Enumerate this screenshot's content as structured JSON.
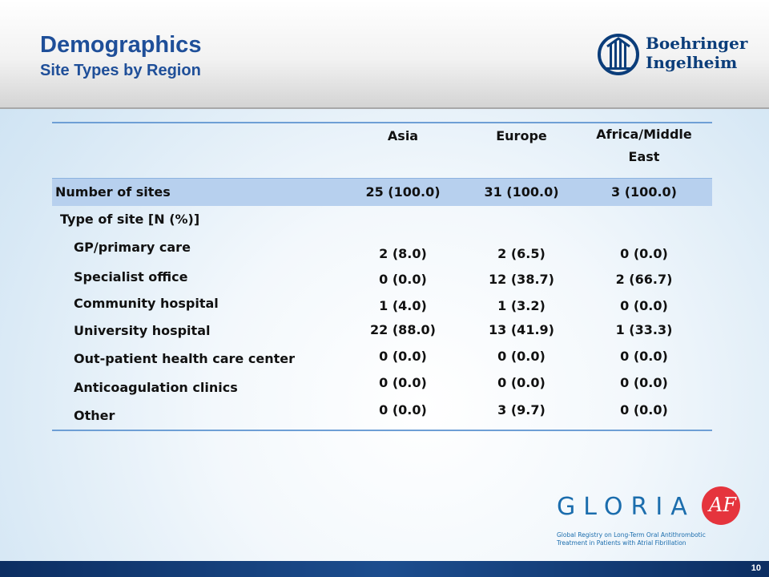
{
  "header": {
    "title": "Demographics",
    "subtitle": "Site Types by Region",
    "logo_line1": "Boehringer",
    "logo_line2": "Ingelheim"
  },
  "table": {
    "columns": [
      "Asia",
      "Europe",
      "Africa/Middle East"
    ],
    "summary_row": {
      "label": "Number of sites",
      "values": [
        "25 (100.0)",
        "31 (100.0)",
        "3 (100.0)"
      ]
    },
    "section_label": "Type of site [N (%)]",
    "rows": [
      {
        "label": "GP/primary care",
        "values": [
          "2 (8.0)",
          "2 (6.5)",
          "0 (0.0)"
        ]
      },
      {
        "label": "Specialist office",
        "values": [
          "0 (0.0)",
          "12 (38.7)",
          "2 (66.7)"
        ]
      },
      {
        "label": "Community hospital",
        "values": [
          "1 (4.0)",
          "1 (3.2)",
          "0 (0.0)"
        ]
      },
      {
        "label": "University hospital",
        "values": [
          "22 (88.0)",
          "13 (41.9)",
          "1 (33.3)"
        ]
      },
      {
        "label": "Out-patient health care center",
        "values": [
          "0 (0.0)",
          "0 (0.0)",
          "0 (0.0)"
        ]
      },
      {
        "label": "Anticoagulation clinics",
        "values": [
          "0 (0.0)",
          "0 (0.0)",
          "0 (0.0)"
        ]
      },
      {
        "label": "Other",
        "values": [
          "0 (0.0)",
          "3 (9.7)",
          "0 (0.0)"
        ]
      }
    ]
  },
  "gloria": {
    "word": "GLORIA",
    "badge": "AF",
    "tagline1": "Global Registry on Long-Term Oral Antithrombotic",
    "tagline2": "Treatment in Patients with Atrial Fibrillation"
  },
  "footer": {
    "page_number": "10"
  },
  "colors": {
    "title": "#1f4f99",
    "band": "#b7d0ee",
    "rule": "#6e9fd5",
    "footer": "#0c2e62",
    "badge": "#e5343d"
  }
}
